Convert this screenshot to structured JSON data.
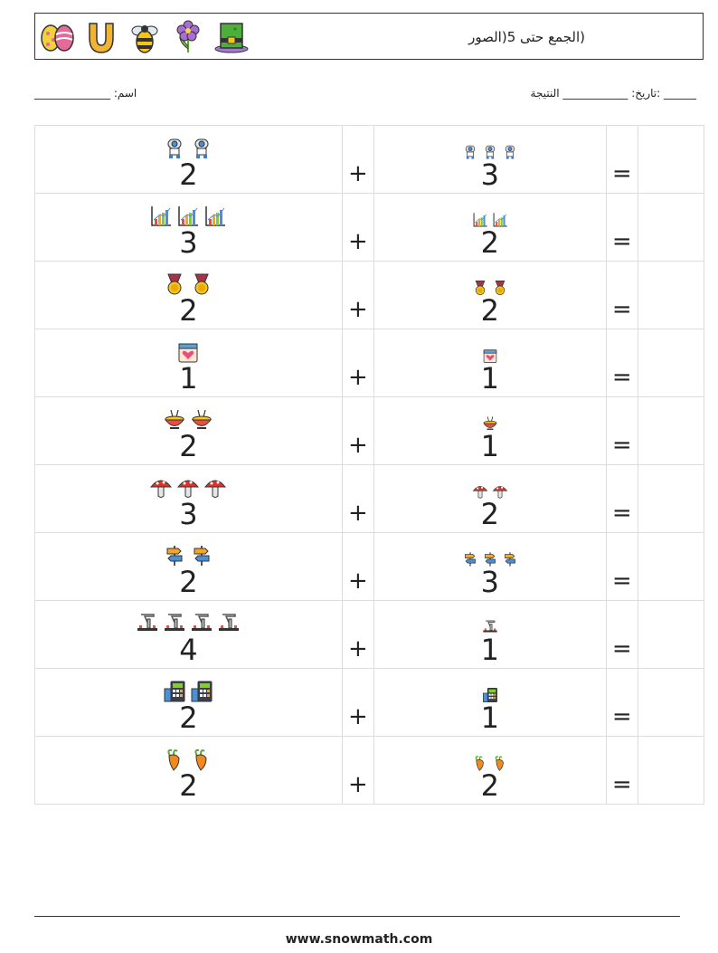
{
  "header": {
    "title": "(الجمع حتى 5(الصور",
    "icons": [
      "easter-egg-icon",
      "horseshoe-icon",
      "bee-icon",
      "flower-icon",
      "leprechaun-hat-icon"
    ]
  },
  "info": {
    "right_text": "______ :تاريخ: ____________ النتيجة",
    "left_text": "اسم: ______________"
  },
  "rows": [
    {
      "icon": "robot-icon",
      "a": "2",
      "b": "3",
      "op": "+",
      "eq": "="
    },
    {
      "icon": "bar-chart-icon",
      "a": "3",
      "b": "2",
      "op": "+",
      "eq": "="
    },
    {
      "icon": "medal-icon",
      "a": "2",
      "b": "2",
      "op": "+",
      "eq": "="
    },
    {
      "icon": "calendar-heart-icon",
      "a": "1",
      "b": "1",
      "op": "+",
      "eq": "="
    },
    {
      "icon": "sushi-bowl-icon",
      "a": "2",
      "b": "1",
      "op": "+",
      "eq": "="
    },
    {
      "icon": "mushroom-icon",
      "a": "3",
      "b": "2",
      "op": "+",
      "eq": "="
    },
    {
      "icon": "signpost-icon",
      "a": "2",
      "b": "3",
      "op": "+",
      "eq": "="
    },
    {
      "icon": "factory-icon",
      "a": "4",
      "b": "1",
      "op": "+",
      "eq": "="
    },
    {
      "icon": "calculator-icon",
      "a": "2",
      "b": "1",
      "op": "+",
      "eq": "="
    },
    {
      "icon": "carrot-icon",
      "a": "2",
      "b": "2",
      "op": "+",
      "eq": "="
    }
  ],
  "footer": {
    "site": "www.snowmath.com"
  }
}
